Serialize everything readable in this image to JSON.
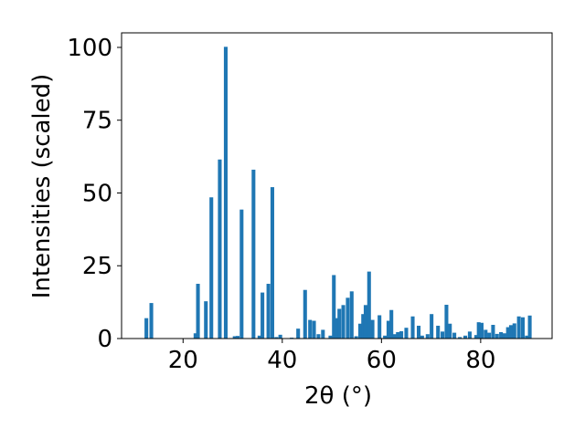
{
  "chart_data": {
    "type": "bar",
    "title": "",
    "xlabel": "2θ (°)",
    "ylabel": "Intensities (scaled)",
    "xlim": [
      7.6,
      94.4
    ],
    "ylim": [
      0,
      105
    ],
    "xticks": [
      20,
      40,
      60,
      80
    ],
    "yticks": [
      0,
      25,
      50,
      75,
      100
    ],
    "bar_width": 0.75,
    "grid": false,
    "legend": "none",
    "color": "#1f77b4",
    "x": [
      12.6,
      13.6,
      22.5,
      23.0,
      24.6,
      25.7,
      27.4,
      28.6,
      30.4,
      31.0,
      31.8,
      34.2,
      35.4,
      36.0,
      37.2,
      38.0,
      38.8,
      39.6,
      41.9,
      43.2,
      44.6,
      45.6,
      46.4,
      47.3,
      48.2,
      49.7,
      50.4,
      50.9,
      51.5,
      52.3,
      53.2,
      54.0,
      54.9,
      55.7,
      56.3,
      56.8,
      57.5,
      58.2,
      59.6,
      60.7,
      61.4,
      62.0,
      62.6,
      63.3,
      64.0,
      65.0,
      66.3,
      67.5,
      68.2,
      69.3,
      70.1,
      71.4,
      72.3,
      73.1,
      73.8,
      74.7,
      75.8,
      76.9,
      77.8,
      79.1,
      79.6,
      80.2,
      81.0,
      81.7,
      82.5,
      83.3,
      84.1,
      84.8,
      85.5,
      86.1,
      86.8,
      87.7,
      88.5,
      89.3,
      89.9
    ],
    "values": [
      7.0,
      12.2,
      1.8,
      18.8,
      12.8,
      48.5,
      61.5,
      100.2,
      0.8,
      0.9,
      44.3,
      58.0,
      1.0,
      15.8,
      18.8,
      52.0,
      0.5,
      1.3,
      0.3,
      3.4,
      16.7,
      6.4,
      6.1,
      1.5,
      3.0,
      1.0,
      21.8,
      7.0,
      10.2,
      11.5,
      14.0,
      16.2,
      0.8,
      5.1,
      8.4,
      11.5,
      23.0,
      6.4,
      8.0,
      1.0,
      6.1,
      9.8,
      1.5,
      2.2,
      2.5,
      3.7,
      7.6,
      4.4,
      1.0,
      1.5,
      8.4,
      4.4,
      2.4,
      11.6,
      5.1,
      2.0,
      0.5,
      1.0,
      2.4,
      1.2,
      5.6,
      5.4,
      3.0,
      2.0,
      4.7,
      1.6,
      2.2,
      1.8,
      3.9,
      4.6,
      5.2,
      7.6,
      7.3,
      1.0,
      7.9
    ]
  }
}
